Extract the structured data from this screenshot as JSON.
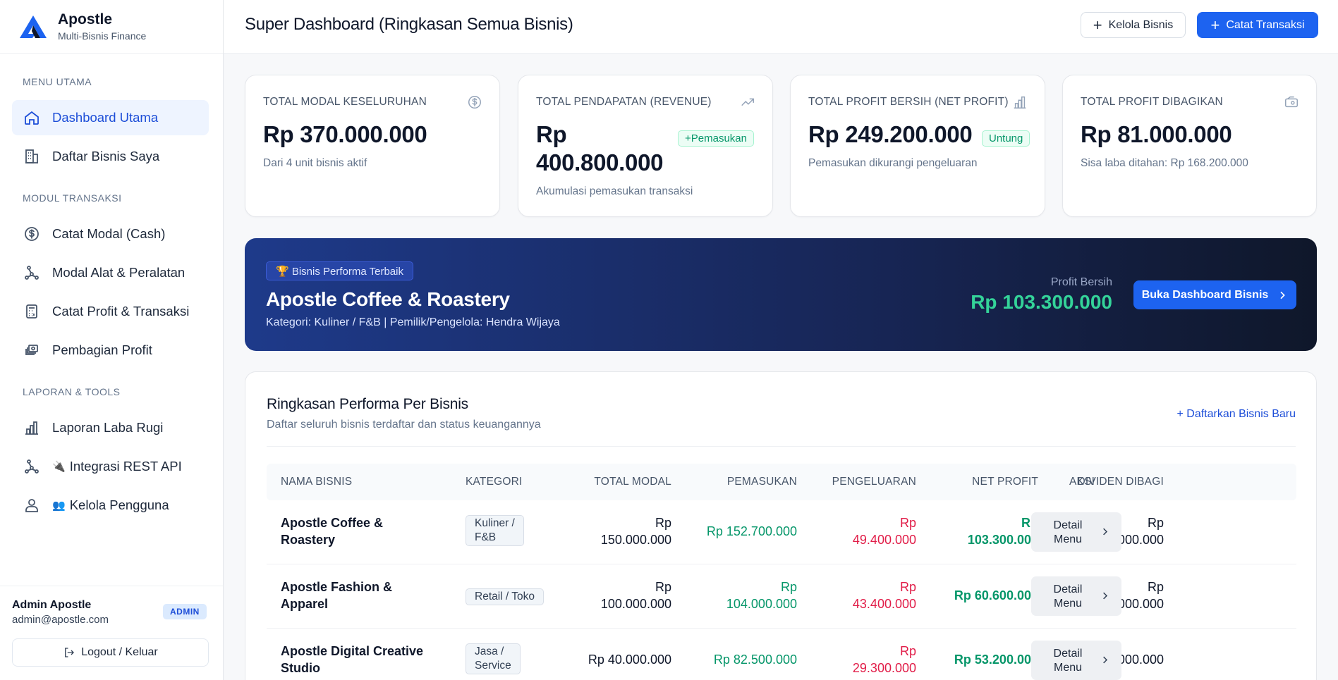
{
  "brand": {
    "name": "Apostle",
    "tagline": "Multi-Bisnis Finance"
  },
  "sidebar": {
    "sections": [
      "MENU UTAMA",
      "MODUL TRANSAKSI",
      "LAPORAN & TOOLS"
    ],
    "items": [
      {
        "label": "Dashboard Utama",
        "icon": "home-icon",
        "active": true
      },
      {
        "label": "Daftar Bisnis Saya",
        "icon": "building-icon"
      },
      {
        "label": "Catat Modal (Cash)",
        "icon": "dollar-circle-icon"
      },
      {
        "label": "Modal Alat & Peralatan",
        "icon": "network-icon"
      },
      {
        "label": "Catat Profit & Transaksi",
        "icon": "calculator-icon"
      },
      {
        "label": "Pembagian Profit",
        "icon": "money-share-icon"
      },
      {
        "label": "Laporan Laba Rugi",
        "icon": "bar-chart-icon"
      },
      {
        "label": "Integrasi REST API",
        "icon": "network-icon",
        "emoji": "🔌"
      },
      {
        "label": "Kelola Pengguna",
        "icon": "users-icon",
        "emoji": "👥"
      }
    ]
  },
  "user": {
    "name": "Admin Apostle",
    "email": "admin@apostle.com",
    "role": "ADMIN",
    "logout_label": "Logout / Keluar"
  },
  "header": {
    "title": "Super Dashboard (Ringkasan Semua Bisnis)",
    "manage_label": "Kelola Bisnis",
    "record_label": "Catat Transaksi"
  },
  "stats": [
    {
      "title": "TOTAL MODAL KESELURUHAN",
      "value": "Rp 370.000.000",
      "sub": "Dari 4 unit bisnis aktif",
      "icon": "dollar-circle-icon"
    },
    {
      "title": "TOTAL PENDAPATAN (REVENUE)",
      "value_line1": "Rp",
      "value_line2": "400.800.000",
      "badge": "+Pemasukan",
      "sub": "Akumulasi pemasukan transaksi",
      "icon": "trending-up-icon"
    },
    {
      "title": "TOTAL PROFIT BERSIH (NET PROFIT)",
      "value": "Rp 249.200.000",
      "badge": "Untung",
      "sub": "Pemasukan dikurangi pengeluaran",
      "icon": "bar-chart-icon"
    },
    {
      "title": "TOTAL PROFIT DIBAGIKAN",
      "value": "Rp 81.000.000",
      "sub": "Sisa laba ditahan: Rp 168.200.000",
      "icon": "wallet-icon"
    }
  ],
  "top_business": {
    "tag": "🏆 Bisnis Performa Terbaik",
    "name": "Apostle Coffee & Roastery",
    "meta": "Kategori: Kuliner / F&B | Pemilik/Pengelola: Hendra Wijaya",
    "profit_label": "Profit Bersih",
    "profit_value": "Rp 103.300.000",
    "button_label": "Buka Dashboard Bisnis"
  },
  "table": {
    "title": "Ringkasan Performa Per Bisnis",
    "subtitle": "Daftar seluruh bisnis terdaftar dan status keuangannya",
    "add_link": "+ Daftarkan Bisnis Baru",
    "columns": [
      "NAMA BISNIS",
      "KATEGORI",
      "TOTAL MODAL",
      "PEMASUKAN",
      "PENGELUARAN",
      "NET PROFIT",
      "DIVIDEN DIBAGI",
      "AKSI"
    ],
    "action_line1": "Detail",
    "action_line2": "Menu",
    "rows": [
      {
        "name_l1": "Apostle Coffee &",
        "name_l2": "Roastery",
        "cat_l1": "Kuliner /",
        "cat_l2": "F&B",
        "modal_l1": "Rp",
        "modal_l2": "150.000.000",
        "income": "Rp 152.700.000",
        "expense_l1": "Rp",
        "expense_l2": "49.400.000",
        "net_l1": "Rp",
        "net_l2": "103.300.000",
        "div_l1": "Rp",
        "div_l2": "40.000.000"
      },
      {
        "name_l1": "Apostle Fashion &",
        "name_l2": "Apparel",
        "cat": "Retail / Toko",
        "modal_l1": "Rp",
        "modal_l2": "100.000.000",
        "income_l1": "Rp",
        "income_l2": "104.000.000",
        "expense_l1": "Rp",
        "expense_l2": "43.400.000",
        "net": "Rp 60.600.000",
        "div_l1": "Rp",
        "div_l2": "20.000.000"
      },
      {
        "name_l1": "Apostle Digital Creative",
        "name_l2": "Studio",
        "cat_l1": "Jasa /",
        "cat_l2": "Service",
        "modal": "Rp 40.000.000",
        "income": "Rp 82.500.000",
        "expense_l1": "Rp",
        "expense_l2": "29.300.000",
        "net": "Rp 53.200.000",
        "div": "Rp 15.000.000"
      }
    ]
  },
  "colors": {
    "primary": "#1d63f0",
    "success": "#059669",
    "danger": "#e11d48",
    "banner_dark": "#0f172a"
  }
}
